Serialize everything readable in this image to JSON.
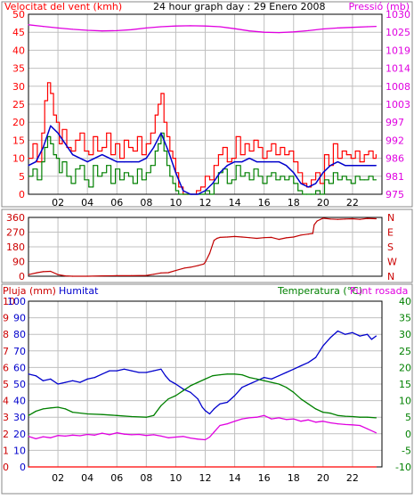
{
  "header": {
    "wind_title": "Velocitat del vent (kmh)",
    "graph_title": "24 hour graph day : 29 Enero 2008",
    "pressure_title": "Pressió (mb)"
  },
  "colors": {
    "wind_gust": "#ff0000",
    "wind_avg": "#008000",
    "wind_smooth": "#0000cc",
    "pressure": "#e000e0",
    "direction": "#c00000",
    "rain": "#ff0000",
    "humidity": "#0000cc",
    "temperature": "#008000",
    "dewpoint": "#e000e0",
    "grid": "#c0c0c0",
    "frame": "#000000"
  },
  "chart_data": [
    {
      "type": "line",
      "panel": "wind",
      "title": "24 hour graph day : 29 Enero 2008",
      "x_ticks": [
        "02",
        "04",
        "06",
        "08",
        "10",
        "12",
        "14",
        "16",
        "18",
        "20",
        "22"
      ],
      "xlim": [
        0,
        24
      ],
      "y_left": {
        "label": "Velocitat del vent (kmh)",
        "ticks": [
          "0",
          "5",
          "10",
          "15",
          "20",
          "25",
          "30",
          "35",
          "40",
          "45",
          "50"
        ],
        "lim": [
          0,
          50
        ]
      },
      "y_right": {
        "label": "Pressió (mb)",
        "ticks": [
          "975",
          "981",
          "986",
          "992",
          "997",
          "1003",
          "1008",
          "1014",
          "1019",
          "1025",
          "1030"
        ],
        "lim": [
          975,
          1030
        ]
      },
      "series": [
        {
          "name": "Velocitat del vent (kmh)",
          "role": "gust",
          "axis": "left",
          "x": [
            0,
            0.3,
            0.6,
            0.9,
            1.1,
            1.3,
            1.5,
            1.7,
            1.9,
            2.1,
            2.3,
            2.6,
            2.9,
            3.2,
            3.5,
            3.8,
            4.1,
            4.4,
            4.7,
            5.0,
            5.3,
            5.6,
            5.9,
            6.2,
            6.5,
            6.8,
            7.1,
            7.4,
            7.7,
            8.0,
            8.3,
            8.6,
            8.8,
            9.0,
            9.2,
            9.4,
            9.6,
            9.8,
            10.0,
            10.2,
            10.5,
            10.8,
            11.1,
            11.4,
            11.7,
            12.0,
            12.3,
            12.6,
            12.9,
            13.2,
            13.5,
            13.8,
            14.1,
            14.4,
            14.7,
            15.0,
            15.3,
            15.6,
            15.9,
            16.2,
            16.5,
            16.8,
            17.1,
            17.4,
            17.7,
            18.0,
            18.3,
            18.6,
            18.9,
            19.2,
            19.5,
            19.8,
            20.1,
            20.4,
            20.7,
            21.0,
            21.3,
            21.6,
            21.9,
            22.2,
            22.5,
            22.8,
            23.1,
            23.4,
            23.6
          ],
          "values": [
            10,
            14,
            9,
            17,
            26,
            31,
            28,
            22,
            20,
            14,
            18,
            13,
            12,
            15,
            17,
            12,
            11,
            16,
            12,
            13,
            17,
            11,
            14,
            10,
            15,
            13,
            12,
            16,
            11,
            14,
            17,
            22,
            25,
            28,
            20,
            16,
            12,
            10,
            6,
            2,
            0,
            0,
            0,
            1,
            2,
            5,
            4,
            8,
            11,
            13,
            9,
            10,
            16,
            11,
            14,
            12,
            15,
            13,
            10,
            12,
            14,
            11,
            13,
            11,
            12,
            9,
            6,
            3,
            2,
            4,
            6,
            3,
            11,
            8,
            14,
            10,
            12,
            11,
            10,
            12,
            9,
            11,
            12,
            10,
            11
          ]
        },
        {
          "name": "Velocitat del vent (kmh)",
          "role": "average",
          "axis": "left",
          "x": [
            0,
            0.3,
            0.6,
            0.9,
            1.1,
            1.3,
            1.5,
            1.7,
            1.9,
            2.1,
            2.3,
            2.6,
            2.9,
            3.2,
            3.5,
            3.8,
            4.1,
            4.4,
            4.7,
            5.0,
            5.3,
            5.6,
            5.9,
            6.2,
            6.5,
            6.8,
            7.1,
            7.4,
            7.7,
            8.0,
            8.3,
            8.6,
            8.8,
            9.0,
            9.2,
            9.4,
            9.6,
            9.8,
            10.0,
            10.2,
            10.5,
            10.8,
            11.1,
            11.4,
            11.7,
            12.0,
            12.3,
            12.6,
            12.9,
            13.2,
            13.5,
            13.8,
            14.1,
            14.4,
            14.7,
            15.0,
            15.3,
            15.6,
            15.9,
            16.2,
            16.5,
            16.8,
            17.1,
            17.4,
            17.7,
            18.0,
            18.3,
            18.6,
            18.9,
            19.2,
            19.5,
            19.8,
            20.1,
            20.4,
            20.7,
            21.0,
            21.3,
            21.6,
            21.9,
            22.2,
            22.5,
            22.8,
            23.1,
            23.4,
            23.6
          ],
          "values": [
            5,
            7,
            4,
            9,
            13,
            16,
            14,
            11,
            10,
            6,
            9,
            5,
            3,
            7,
            8,
            4,
            2,
            8,
            5,
            6,
            8,
            3,
            7,
            4,
            6,
            5,
            3,
            7,
            4,
            6,
            8,
            12,
            14,
            17,
            12,
            8,
            5,
            3,
            1,
            0,
            0,
            0,
            0,
            0,
            0,
            1,
            0,
            3,
            6,
            7,
            3,
            4,
            8,
            5,
            6,
            4,
            7,
            5,
            3,
            5,
            6,
            4,
            5,
            4,
            5,
            3,
            1,
            0,
            0,
            0,
            1,
            0,
            4,
            3,
            6,
            4,
            5,
            4,
            3,
            5,
            4,
            4,
            5,
            4,
            4
          ]
        },
        {
          "name": "Velocitat del vent (kmh)",
          "role": "smoothed",
          "axis": "left",
          "x": [
            0,
            0.5,
            1.0,
            1.5,
            2.0,
            2.5,
            3.0,
            3.5,
            4.0,
            4.5,
            5.0,
            5.5,
            6.0,
            6.5,
            7.0,
            7.5,
            8.0,
            8.5,
            9.0,
            9.5,
            10.0,
            10.5,
            11.0,
            11.5,
            12.0,
            12.5,
            13.0,
            13.5,
            14.0,
            14.5,
            15.0,
            15.5,
            16.0,
            16.5,
            17.0,
            17.5,
            18.0,
            18.5,
            19.0,
            19.5,
            20.0,
            20.5,
            21.0,
            21.5,
            22.0,
            22.5,
            23.0,
            23.6
          ],
          "values": [
            8,
            9,
            13,
            19,
            17,
            14,
            11,
            10,
            9,
            10,
            11,
            10,
            9,
            9,
            9,
            9,
            10,
            13,
            17,
            12,
            6,
            1,
            0,
            0,
            1,
            3,
            6,
            8,
            9,
            9,
            10,
            9,
            9,
            9,
            9,
            8,
            6,
            3,
            2,
            3,
            6,
            8,
            9,
            8,
            8,
            8,
            8,
            8
          ]
        },
        {
          "name": "Pressió (mb)",
          "axis": "right",
          "x": [
            0,
            1,
            2,
            3,
            4,
            5,
            6,
            7,
            8,
            9,
            10,
            11,
            12,
            13,
            14,
            15,
            16,
            17,
            18,
            19,
            20,
            21,
            22,
            23,
            23.6
          ],
          "values": [
            1026.8,
            1026.3,
            1025.8,
            1025.4,
            1025.1,
            1024.9,
            1025.0,
            1025.3,
            1025.8,
            1026.2,
            1026.4,
            1026.5,
            1026.4,
            1026.2,
            1025.6,
            1024.9,
            1024.5,
            1024.4,
            1024.6,
            1025.0,
            1025.5,
            1025.8,
            1026.0,
            1026.2,
            1026.3
          ]
        }
      ]
    },
    {
      "type": "line",
      "panel": "direction",
      "xlim": [
        0,
        24
      ],
      "y_left": {
        "ticks": [
          "0",
          "90",
          "180",
          "270",
          "360"
        ],
        "lim": [
          0,
          360
        ]
      },
      "y_right": {
        "ticks": [
          "N",
          "W",
          "S",
          "E",
          "N"
        ]
      },
      "series": [
        {
          "name": "Direction",
          "x": [
            0,
            0.6,
            1.0,
            1.5,
            2.0,
            2.5,
            3.0,
            4.0,
            5.0,
            6.0,
            7.0,
            8.0,
            8.5,
            9.0,
            9.5,
            10.0,
            10.6,
            11.0,
            11.5,
            11.9,
            12.0,
            12.3,
            12.6,
            12.8,
            13.0,
            13.5,
            14.0,
            14.5,
            15.0,
            15.5,
            16.0,
            16.5,
            17.0,
            17.5,
            18.0,
            18.5,
            19.0,
            19.3,
            19.4,
            19.6,
            20.0,
            20.5,
            21.0,
            21.5,
            22.0,
            22.5,
            23.0,
            23.6
          ],
          "values": [
            10,
            22,
            28,
            30,
            10,
            2,
            0,
            0,
            2,
            3,
            3,
            5,
            12,
            20,
            22,
            35,
            50,
            55,
            65,
            75,
            85,
            140,
            220,
            232,
            238,
            240,
            243,
            240,
            236,
            232,
            236,
            238,
            226,
            235,
            240,
            252,
            258,
            262,
            315,
            338,
            355,
            350,
            348,
            350,
            352,
            348,
            354,
            352
          ]
        }
      ]
    },
    {
      "type": "line",
      "panel": "rain-humidity-temperature",
      "xlim": [
        0,
        24
      ],
      "legend": [
        "Pluja (mm)",
        "Humitat",
        "Temperatura (°C)",
        "Punt rosada"
      ],
      "y_left_outer": {
        "label": "Pluja (mm)",
        "ticks": [
          "0",
          "1",
          "2",
          "3",
          "4",
          "5",
          "6",
          "7",
          "8",
          "9",
          "10"
        ],
        "lim": [
          0,
          10
        ]
      },
      "y_left_inner": {
        "label": "Humitat",
        "ticks": [
          "0",
          "10",
          "20",
          "30",
          "40",
          "50",
          "60",
          "70",
          "80",
          "90",
          "100"
        ],
        "lim": [
          0,
          100
        ]
      },
      "y_right": {
        "label": "Temperatura (°C)",
        "ticks": [
          "-10",
          "-5",
          "0",
          "5",
          "10",
          "15",
          "20",
          "25",
          "30",
          "35",
          "40"
        ],
        "lim": [
          -10,
          40
        ]
      },
      "series": [
        {
          "name": "Pluja (mm)",
          "axis": "left_outer",
          "x": [
            0,
            23.6
          ],
          "values": [
            0,
            0
          ]
        },
        {
          "name": "Humitat",
          "axis": "left_inner",
          "x": [
            0,
            0.5,
            1.0,
            1.5,
            2.0,
            2.5,
            3.0,
            3.5,
            4.0,
            4.5,
            5.0,
            5.5,
            6.0,
            6.5,
            7.0,
            7.5,
            8.0,
            8.5,
            9.0,
            9.3,
            9.6,
            10.0,
            10.5,
            11.0,
            11.5,
            11.8,
            12.0,
            12.3,
            12.6,
            13.0,
            13.5,
            14.0,
            14.5,
            15.0,
            15.5,
            16.0,
            16.5,
            17.0,
            17.5,
            18.0,
            18.5,
            19.0,
            19.5,
            20.0,
            20.5,
            21.0,
            21.5,
            22.0,
            22.5,
            23.0,
            23.3,
            23.6
          ],
          "values": [
            56,
            55,
            52,
            53,
            50,
            51,
            52,
            51,
            53,
            54,
            56,
            58,
            58,
            59,
            58,
            57,
            57,
            58,
            59,
            55,
            52,
            50,
            47,
            45,
            41,
            36,
            34,
            32,
            35,
            38,
            39,
            43,
            48,
            50,
            52,
            54,
            53,
            55,
            57,
            59,
            61,
            63,
            66,
            73,
            78,
            82,
            80,
            81,
            79,
            80,
            77,
            79
          ]
        },
        {
          "name": "Temperatura (°C)",
          "axis": "right",
          "x": [
            0,
            0.5,
            1.0,
            1.5,
            2.0,
            2.5,
            3.0,
            4.0,
            5.0,
            6.0,
            7.0,
            8.0,
            8.5,
            9.0,
            9.5,
            10.0,
            10.5,
            11.0,
            11.5,
            12.0,
            12.5,
            13.0,
            13.5,
            14.0,
            14.5,
            15.0,
            15.5,
            16.0,
            16.5,
            17.0,
            17.5,
            18.0,
            18.5,
            19.0,
            19.5,
            20.0,
            20.5,
            21.0,
            21.5,
            22.0,
            22.5,
            23.0,
            23.6
          ],
          "values": [
            5.5,
            6.8,
            7.5,
            7.8,
            8.0,
            7.5,
            6.5,
            6.0,
            5.8,
            5.5,
            5.2,
            5.0,
            5.5,
            8.5,
            10.5,
            11.5,
            13.0,
            14.5,
            15.5,
            16.5,
            17.5,
            17.8,
            18.0,
            18.0,
            17.8,
            17.0,
            16.5,
            16.0,
            15.5,
            15.0,
            14.0,
            12.5,
            10.5,
            9.0,
            7.5,
            6.5,
            6.2,
            5.5,
            5.3,
            5.2,
            5.0,
            5.0,
            4.8
          ]
        },
        {
          "name": "Punt rosada",
          "axis": "right",
          "x": [
            0,
            0.5,
            1.0,
            1.5,
            2.0,
            2.5,
            3.0,
            3.5,
            4.0,
            4.5,
            5.0,
            5.5,
            6.0,
            6.5,
            7.0,
            7.5,
            8.0,
            8.5,
            9.0,
            9.5,
            10.0,
            10.5,
            11.0,
            11.5,
            12.0,
            12.3,
            12.6,
            13.0,
            13.5,
            14.0,
            14.5,
            15.0,
            15.5,
            16.0,
            16.5,
            17.0,
            17.5,
            18.0,
            18.5,
            19.0,
            19.5,
            20.0,
            20.5,
            21.0,
            21.5,
            22.0,
            22.5,
            23.0,
            23.6
          ],
          "values": [
            -0.8,
            -1.5,
            -0.9,
            -1.2,
            -0.5,
            -0.7,
            -0.4,
            -0.6,
            -0.2,
            -0.4,
            0.2,
            -0.3,
            0.3,
            -0.1,
            -0.3,
            -0.2,
            -0.5,
            -0.3,
            -0.7,
            -1.2,
            -1.0,
            -0.8,
            -1.3,
            -1.6,
            -1.8,
            -1.0,
            0.5,
            2.5,
            3.0,
            3.8,
            4.5,
            4.8,
            5.0,
            5.5,
            4.5,
            4.8,
            4.3,
            4.5,
            3.8,
            4.2,
            3.5,
            3.8,
            3.3,
            3.0,
            2.8,
            2.7,
            2.5,
            1.5,
            0.3
          ]
        }
      ]
    }
  ]
}
